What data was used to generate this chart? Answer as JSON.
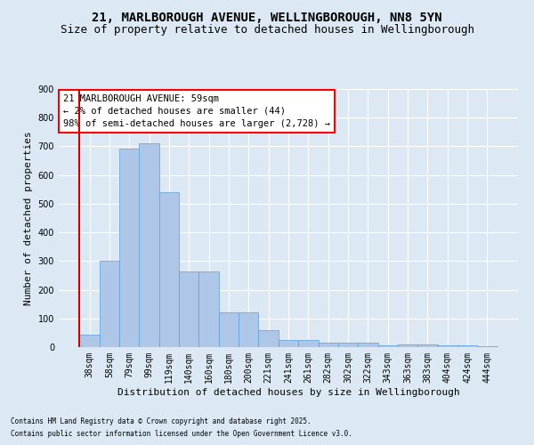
{
  "title1": "21, MARLBOROUGH AVENUE, WELLINGBOROUGH, NN8 5YN",
  "title2": "Size of property relative to detached houses in Wellingborough",
  "xlabel": "Distribution of detached houses by size in Wellingborough",
  "ylabel": "Number of detached properties",
  "categories": [
    "38sqm",
    "58sqm",
    "79sqm",
    "99sqm",
    "119sqm",
    "140sqm",
    "160sqm",
    "180sqm",
    "200sqm",
    "221sqm",
    "241sqm",
    "261sqm",
    "282sqm",
    "302sqm",
    "322sqm",
    "343sqm",
    "363sqm",
    "383sqm",
    "404sqm",
    "424sqm",
    "444sqm"
  ],
  "values": [
    45,
    300,
    693,
    710,
    540,
    265,
    265,
    120,
    120,
    60,
    25,
    25,
    15,
    15,
    15,
    5,
    10,
    10,
    5,
    5,
    2
  ],
  "bar_color": "#aec6e8",
  "bar_edge_color": "#5a9fd4",
  "highlight_index": 0,
  "highlight_color": "#cc0000",
  "annotation_title": "21 MARLBOROUGH AVENUE: 59sqm",
  "annotation_line1": "← 2% of detached houses are smaller (44)",
  "annotation_line2": "98% of semi-detached houses are larger (2,728) →",
  "footnote1": "Contains HM Land Registry data © Crown copyright and database right 2025.",
  "footnote2": "Contains public sector information licensed under the Open Government Licence v3.0.",
  "ylim": [
    0,
    900
  ],
  "yticks": [
    0,
    100,
    200,
    300,
    400,
    500,
    600,
    700,
    800,
    900
  ],
  "background_color": "#dce9f5",
  "plot_bg_color": "#dce9f5",
  "grid_color": "#ffffff",
  "title_fontsize": 10,
  "subtitle_fontsize": 9,
  "axis_label_fontsize": 8,
  "tick_fontsize": 7,
  "annotation_fontsize": 7.5,
  "footnote_fontsize": 5.5
}
